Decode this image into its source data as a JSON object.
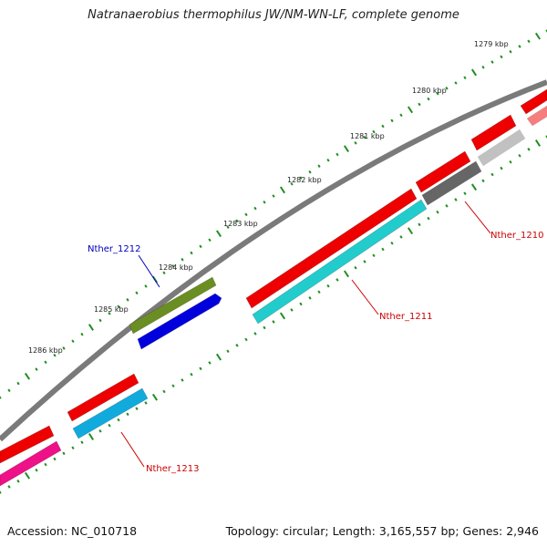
{
  "title": "Natranaerobius thermophilus JW/NM-WN-LF, complete genome",
  "footer": {
    "accession": "Accession: NC_010718",
    "topology": "Topology: circular; Length: 3,165,557 bp; Genes: 2,946"
  },
  "ticks": [
    "1279 kbp",
    "1280 kbp",
    "1281 kbp",
    "1282 kbp",
    "1283 kbp",
    "1284 kbp",
    "1285 kbp",
    "1286 kbp"
  ],
  "labels": [
    {
      "text": "Nther_1210",
      "color": "#cc0000"
    },
    {
      "text": "Nther_1211",
      "color": "#cc0000"
    },
    {
      "text": "Nther_1212",
      "color": "#0000bb"
    },
    {
      "text": "Nther_1213",
      "color": "#cc0000"
    }
  ],
  "colors": {
    "backbone": "#7a7a7a",
    "tick": "#1f8f1f",
    "red": "#ee0000",
    "cyan": "#22cccc",
    "olive": "#6b8e23",
    "blue": "#0000dd",
    "grey": "#666666",
    "skyblue": "#11aadd",
    "pink": "#ee1188"
  }
}
